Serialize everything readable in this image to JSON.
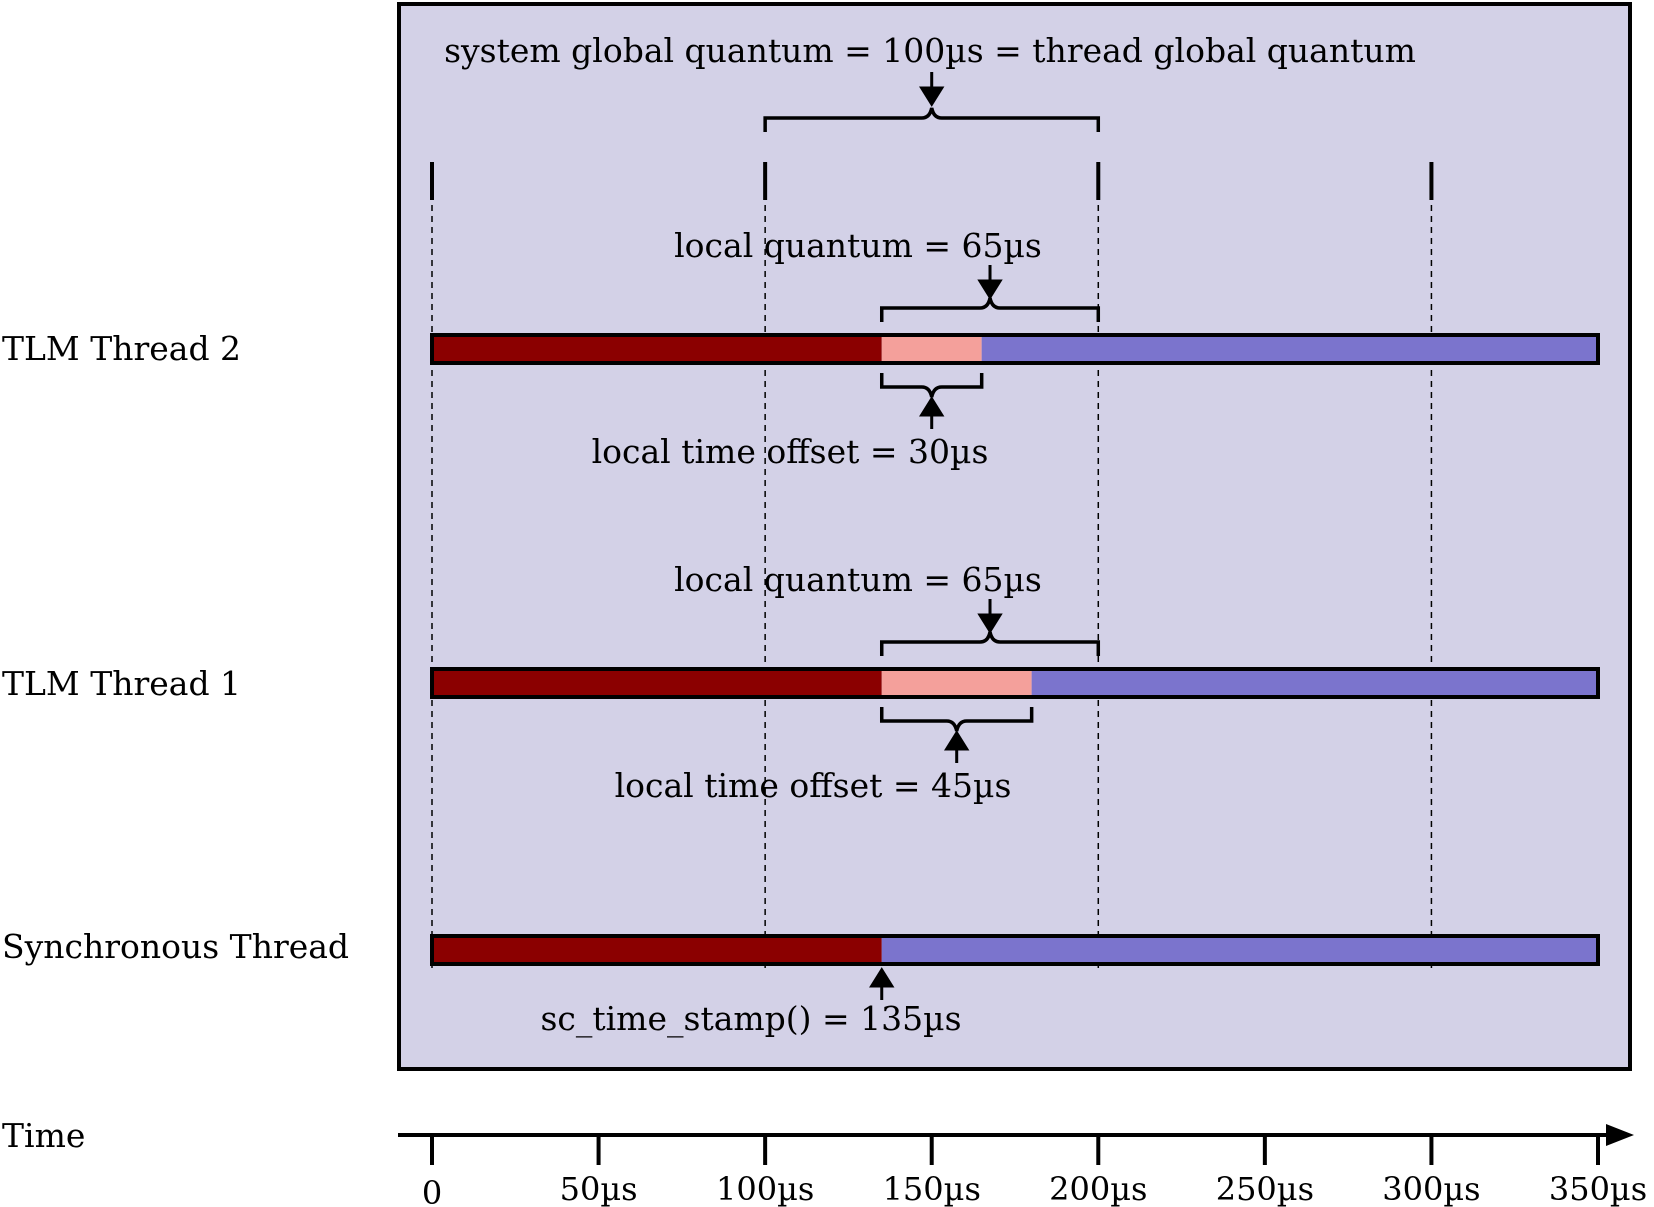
{
  "time_axis": {
    "title": "Time",
    "unit": "µs",
    "range": [
      0,
      350
    ],
    "ticks": [
      {
        "value": 0,
        "label": "0"
      },
      {
        "value": 50,
        "label": "50µs"
      },
      {
        "value": 100,
        "label": "100µs"
      },
      {
        "value": 150,
        "label": "150µs"
      },
      {
        "value": 200,
        "label": "200µs"
      },
      {
        "value": 250,
        "label": "250µs"
      },
      {
        "value": 300,
        "label": "300µs"
      },
      {
        "value": 350,
        "label": "350µs"
      }
    ]
  },
  "quantum_boundaries": [
    0,
    100,
    200,
    300
  ],
  "global_quantum": {
    "label": "system global quantum = 100µs = thread global quantum",
    "start": 100,
    "end": 200
  },
  "threads": [
    {
      "name": "TLM Thread 2",
      "elapsed_end": 135,
      "offset_end": 165,
      "local_quantum": {
        "label": "local quantum = 65µs",
        "start": 135,
        "end": 200
      },
      "local_offset": {
        "label": "local time offset = 30µs",
        "start": 135,
        "end": 165
      }
    },
    {
      "name": "TLM Thread 1",
      "elapsed_end": 135,
      "offset_end": 180,
      "local_quantum": {
        "label": "local quantum = 65µs",
        "start": 135,
        "end": 200
      },
      "local_offset": {
        "label": "local time offset = 45µs",
        "start": 135,
        "end": 180
      }
    },
    {
      "name": "Synchronous Thread",
      "elapsed_end": 135,
      "timestamp": {
        "label": "sc_time_stamp() = 135µs",
        "value": 135
      }
    }
  ],
  "colors": {
    "panel_fill": "#d3d1e7",
    "elapsed": "#8b0000",
    "local_offset": "#f4a09b",
    "future": "#7b74cd",
    "line": "#000000"
  }
}
